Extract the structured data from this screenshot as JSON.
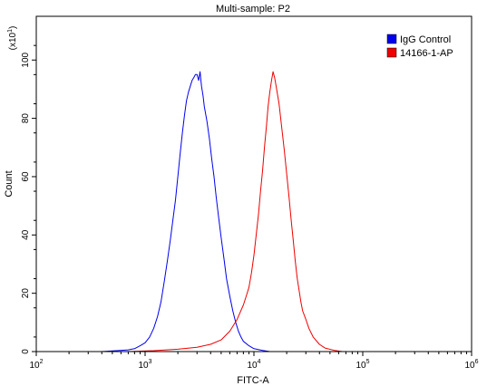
{
  "chart_data": {
    "type": "line",
    "title": "Multi-sample: P2",
    "xlabel": "FITC-A",
    "ylabel": "Count",
    "y_multiplier_label": "(x10^1)",
    "x_scale": "log",
    "xlim": [
      100,
      1000000
    ],
    "ylim": [
      0,
      115
    ],
    "x_ticks": [
      {
        "value": 100,
        "base": "10",
        "exp": "2"
      },
      {
        "value": 1000,
        "base": "10",
        "exp": "3"
      },
      {
        "value": 10000,
        "base": "10",
        "exp": "4"
      },
      {
        "value": 100000,
        "base": "10",
        "exp": "5"
      },
      {
        "value": 1000000,
        "base": "10",
        "exp": "6"
      }
    ],
    "y_ticks": [
      0,
      20,
      40,
      60,
      80,
      100
    ],
    "grid": false,
    "legend_position": "top-right",
    "series": [
      {
        "name": "IgG Control",
        "color": "#0000ee",
        "points": [
          [
            250,
            0
          ],
          [
            400,
            0
          ],
          [
            550,
            0.3
          ],
          [
            700,
            0.6
          ],
          [
            800,
            1
          ],
          [
            900,
            2
          ],
          [
            1000,
            3
          ],
          [
            1100,
            5
          ],
          [
            1200,
            8
          ],
          [
            1300,
            12
          ],
          [
            1400,
            17
          ],
          [
            1500,
            24
          ],
          [
            1600,
            31
          ],
          [
            1700,
            38
          ],
          [
            1800,
            45
          ],
          [
            1900,
            52
          ],
          [
            2000,
            60
          ],
          [
            2100,
            68
          ],
          [
            2200,
            75
          ],
          [
            2300,
            81
          ],
          [
            2400,
            86
          ],
          [
            2500,
            89
          ],
          [
            2600,
            91
          ],
          [
            2700,
            93
          ],
          [
            2800,
            94
          ],
          [
            2900,
            95
          ],
          [
            3000,
            95
          ],
          [
            3100,
            93
          ],
          [
            3200,
            96
          ],
          [
            3300,
            91
          ],
          [
            3400,
            88
          ],
          [
            3500,
            84
          ],
          [
            3700,
            79
          ],
          [
            3900,
            73
          ],
          [
            4100,
            66
          ],
          [
            4300,
            60
          ],
          [
            4500,
            53
          ],
          [
            4700,
            47
          ],
          [
            5000,
            39
          ],
          [
            5300,
            32
          ],
          [
            5600,
            25
          ],
          [
            6000,
            19
          ],
          [
            6400,
            14
          ],
          [
            6800,
            10
          ],
          [
            7200,
            7
          ],
          [
            7600,
            5
          ],
          [
            8000,
            3.5
          ],
          [
            9000,
            2
          ],
          [
            10000,
            1
          ],
          [
            12000,
            0.4
          ],
          [
            14000,
            0
          ]
        ]
      },
      {
        "name": "14166-1-AP",
        "color": "#ee0000",
        "points": [
          [
            700,
            0
          ],
          [
            1200,
            0.3
          ],
          [
            2000,
            0.8
          ],
          [
            3000,
            1.5
          ],
          [
            4000,
            2.5
          ],
          [
            5000,
            4
          ],
          [
            6000,
            7
          ],
          [
            7000,
            11
          ],
          [
            8000,
            16
          ],
          [
            8500,
            19
          ],
          [
            9000,
            22
          ],
          [
            9500,
            27
          ],
          [
            10000,
            33
          ],
          [
            10500,
            40
          ],
          [
            11000,
            47
          ],
          [
            11500,
            55
          ],
          [
            12000,
            62
          ],
          [
            12500,
            70
          ],
          [
            13000,
            77
          ],
          [
            13500,
            84
          ],
          [
            14000,
            89
          ],
          [
            14500,
            93
          ],
          [
            15000,
            96
          ],
          [
            15500,
            94
          ],
          [
            16000,
            91
          ],
          [
            17000,
            85
          ],
          [
            18000,
            77
          ],
          [
            19000,
            69
          ],
          [
            20000,
            61
          ],
          [
            21000,
            53
          ],
          [
            22000,
            45
          ],
          [
            23000,
            38
          ],
          [
            24000,
            31
          ],
          [
            25000,
            25
          ],
          [
            26000,
            21
          ],
          [
            27000,
            17
          ],
          [
            28000,
            14
          ],
          [
            30000,
            11
          ],
          [
            32000,
            8
          ],
          [
            35000,
            5
          ],
          [
            40000,
            2.5
          ],
          [
            45000,
            1.2
          ],
          [
            55000,
            0.4
          ],
          [
            65000,
            0
          ]
        ]
      }
    ]
  }
}
